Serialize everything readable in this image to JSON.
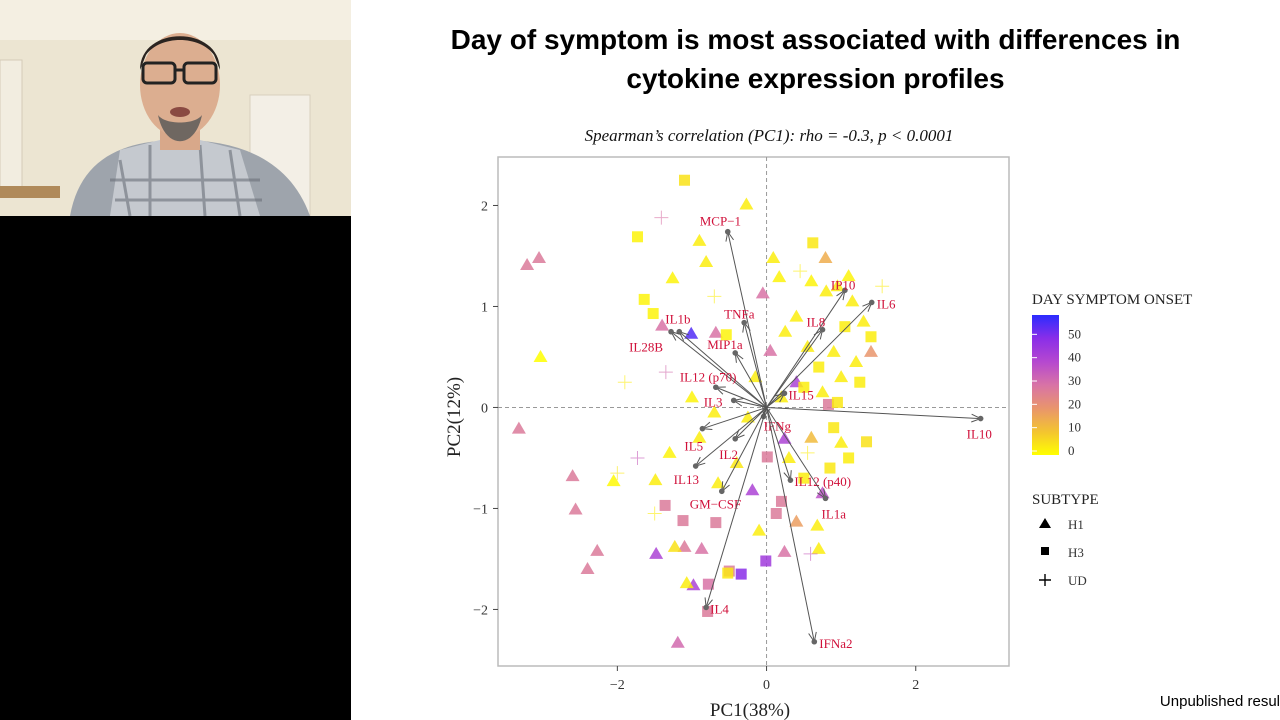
{
  "slide": {
    "title_line1": "Day of symptom is most associated with differences in",
    "title_line2": "cytokine expression profiles",
    "footer_note": "Unpublished resul"
  },
  "webcam": {
    "icon": "presenter-video-feed"
  },
  "chart_data": {
    "type": "scatter",
    "subtitle": "Spearman’s correlation (PC1): rho = -0.3, p < 0.0001",
    "xlabel": "PC1(38%)",
    "ylabel": "PC2(12%)",
    "xlim": [
      -3.6,
      3.25
    ],
    "ylim": [
      -2.56,
      2.48
    ],
    "xticks": [
      "-2",
      "0",
      "2"
    ],
    "xtick_values": [
      -2,
      0,
      2
    ],
    "yticks": [
      "-2",
      "-1",
      "0",
      "1",
      "2"
    ],
    "ytick_values": [
      -2,
      -1,
      0,
      1,
      2
    ],
    "reference_lines": {
      "x": 0,
      "y": 0,
      "style": "dashed"
    },
    "grid": false,
    "colorbar": {
      "title": "DAY SYMPTOM ONSET",
      "ticks": [
        "0",
        "10",
        "20",
        "30",
        "40",
        "50"
      ],
      "tick_values": [
        0,
        10,
        20,
        30,
        40,
        50
      ],
      "range": [
        0,
        60
      ],
      "colors": [
        "#ffff00",
        "#f3c430",
        "#e9956c",
        "#d873a6",
        "#b548d0",
        "#8a2ee8",
        "#2b2cff"
      ]
    },
    "shape_legend": {
      "title": "SUBTYPE",
      "entries": [
        {
          "label": "H1",
          "shape": "triangle"
        },
        {
          "label": "H3",
          "shape": "square"
        },
        {
          "label": "UD",
          "shape": "plus"
        }
      ]
    },
    "legend_position": "right",
    "loadings_color": "#d0103a",
    "loadings": [
      {
        "name": "MCP−1",
        "x": -0.52,
        "y": 1.74
      },
      {
        "name": "TNFa",
        "x": -0.3,
        "y": 0.84
      },
      {
        "name": "MIP1a",
        "x": -0.42,
        "y": 0.54
      },
      {
        "name": "IL1b",
        "x": -1.17,
        "y": 0.75
      },
      {
        "name": "IL28B",
        "x": -1.28,
        "y": 0.75
      },
      {
        "name": "IL12 (p70)",
        "x": -0.68,
        "y": 0.2
      },
      {
        "name": "IL3",
        "x": -0.44,
        "y": 0.07
      },
      {
        "name": "IL15",
        "x": 0.24,
        "y": 0.14
      },
      {
        "name": "IP10",
        "x": 1.05,
        "y": 1.16
      },
      {
        "name": "IL6",
        "x": 1.41,
        "y": 1.04
      },
      {
        "name": "IL8",
        "x": 0.75,
        "y": 0.77
      },
      {
        "name": "IL10",
        "x": 2.87,
        "y": -0.11
      },
      {
        "name": "IFNg",
        "x": -0.04,
        "y": -0.09
      },
      {
        "name": "IL5",
        "x": -0.86,
        "y": -0.21
      },
      {
        "name": "IL2",
        "x": -0.42,
        "y": -0.31
      },
      {
        "name": "IL13",
        "x": -0.95,
        "y": -0.58
      },
      {
        "name": "GM−CSF",
        "x": -0.6,
        "y": -0.83
      },
      {
        "name": "IL12 (p40)",
        "x": 0.32,
        "y": -0.72
      },
      {
        "name": "IL1a",
        "x": 0.79,
        "y": -0.9
      },
      {
        "name": "IL4",
        "x": -0.81,
        "y": -1.98
      },
      {
        "name": "IFNa2",
        "x": 0.64,
        "y": -2.32
      }
    ],
    "points_columns": [
      "pc1",
      "pc2",
      "day",
      "subtype"
    ],
    "points": [
      [
        -1.1,
        2.25,
        5,
        "H3"
      ],
      [
        -0.27,
        2.01,
        3,
        "H1"
      ],
      [
        -1.41,
        1.88,
        30,
        "UD"
      ],
      [
        -1.73,
        1.69,
        2,
        "H3"
      ],
      [
        -0.9,
        1.65,
        3,
        "H1"
      ],
      [
        -0.81,
        1.44,
        3,
        "H1"
      ],
      [
        -1.26,
        1.28,
        2,
        "H1"
      ],
      [
        0.09,
        1.48,
        3,
        "H1"
      ],
      [
        0.62,
        1.63,
        4,
        "H3"
      ],
      [
        0.79,
        1.48,
        15,
        "H1"
      ],
      [
        0.17,
        1.29,
        2,
        "H1"
      ],
      [
        -1.64,
        1.07,
        2,
        "H3"
      ],
      [
        -1.52,
        0.93,
        2,
        "H3"
      ],
      [
        -0.05,
        1.13,
        30,
        "H1"
      ],
      [
        -1.4,
        0.81,
        30,
        "H1"
      ],
      [
        -1.01,
        0.73,
        56,
        "H1"
      ],
      [
        -0.68,
        0.74,
        30,
        "H1"
      ],
      [
        -0.54,
        0.72,
        2,
        "H3"
      ],
      [
        0.05,
        0.56,
        30,
        "H1"
      ],
      [
        -3.05,
        1.48,
        28,
        "H1"
      ],
      [
        -3.21,
        1.41,
        28,
        "H1"
      ],
      [
        -3.03,
        0.5,
        0,
        "H1"
      ],
      [
        0.4,
        0.25,
        42,
        "H1"
      ],
      [
        0.83,
        0.03,
        28,
        "H3"
      ],
      [
        1.34,
        -0.34,
        5,
        "H3"
      ],
      [
        -3.32,
        -0.21,
        28,
        "H1"
      ],
      [
        -1.73,
        -0.5,
        35,
        "UD"
      ],
      [
        -2.6,
        -0.68,
        28,
        "H1"
      ],
      [
        -2.56,
        -1.01,
        28,
        "H1"
      ],
      [
        -2.05,
        -0.73,
        1,
        "H1"
      ],
      [
        -1.49,
        -0.72,
        3,
        "H1"
      ],
      [
        -1.36,
        -0.97,
        28,
        "H3"
      ],
      [
        -2.27,
        -1.42,
        28,
        "H1"
      ],
      [
        -2.4,
        -1.6,
        28,
        "H1"
      ],
      [
        -1.48,
        -1.45,
        42,
        "H1"
      ],
      [
        -1.1,
        -1.38,
        28,
        "H1"
      ],
      [
        -0.87,
        -1.4,
        30,
        "H1"
      ],
      [
        -1.23,
        -1.38,
        5,
        "H1"
      ],
      [
        -0.68,
        -1.14,
        28,
        "H3"
      ],
      [
        -1.12,
        -1.12,
        28,
        "H3"
      ],
      [
        -0.19,
        -0.82,
        42,
        "H1"
      ],
      [
        0.01,
        -0.49,
        28,
        "H3"
      ],
      [
        0.2,
        -0.93,
        28,
        "H3"
      ],
      [
        0.13,
        -1.05,
        28,
        "H3"
      ],
      [
        0.24,
        -0.31,
        42,
        "H1"
      ],
      [
        0.4,
        -1.13,
        18,
        "H1"
      ],
      [
        0.68,
        -1.17,
        3,
        "H1"
      ],
      [
        0.7,
        -1.4,
        3,
        "H1"
      ],
      [
        -0.01,
        -1.52,
        45,
        "H3"
      ],
      [
        0.24,
        -1.43,
        30,
        "H1"
      ],
      [
        -0.34,
        -1.65,
        50,
        "H3"
      ],
      [
        -0.78,
        -1.75,
        30,
        "H3"
      ],
      [
        -0.98,
        -1.76,
        42,
        "H1"
      ],
      [
        -0.5,
        -1.62,
        28,
        "H3"
      ],
      [
        -1.07,
        -1.74,
        3,
        "H1"
      ],
      [
        -0.52,
        -1.64,
        4,
        "H3"
      ],
      [
        -0.79,
        -2.02,
        28,
        "H3"
      ],
      [
        -1.19,
        -2.33,
        32,
        "H1"
      ],
      [
        0.59,
        -1.45,
        35,
        "UD"
      ],
      [
        -0.1,
        -1.22,
        3,
        "H1"
      ],
      [
        -1.3,
        -0.45,
        2,
        "H1"
      ],
      [
        -0.9,
        -0.3,
        3,
        "H1"
      ],
      [
        -0.4,
        -0.55,
        4,
        "H1"
      ],
      [
        -0.65,
        -0.75,
        3,
        "H1"
      ],
      [
        0.3,
        -0.5,
        3,
        "H1"
      ],
      [
        0.5,
        -0.7,
        3,
        "H3"
      ],
      [
        0.75,
        -0.85,
        38,
        "H1"
      ],
      [
        0.85,
        -0.6,
        4,
        "H3"
      ],
      [
        1.1,
        -0.5,
        3,
        "H3"
      ],
      [
        0.6,
        -0.3,
        12,
        "H1"
      ],
      [
        0.9,
        -0.2,
        4,
        "H3"
      ],
      [
        1.0,
        -0.35,
        3,
        "H1"
      ],
      [
        0.6,
        1.25,
        2,
        "H1"
      ],
      [
        0.8,
        1.15,
        3,
        "H1"
      ],
      [
        0.95,
        1.2,
        3,
        "H1"
      ],
      [
        1.1,
        1.3,
        2,
        "H1"
      ],
      [
        1.15,
        1.05,
        3,
        "H1"
      ],
      [
        1.3,
        0.85,
        3,
        "H1"
      ],
      [
        1.4,
        0.7,
        3,
        "H3"
      ],
      [
        1.4,
        0.55,
        20,
        "H1"
      ],
      [
        1.05,
        0.8,
        3,
        "H3"
      ],
      [
        0.9,
        0.55,
        3,
        "H1"
      ],
      [
        1.2,
        0.45,
        3,
        "H1"
      ],
      [
        1.0,
        0.3,
        3,
        "H1"
      ],
      [
        0.7,
        0.4,
        3,
        "H3"
      ],
      [
        0.55,
        0.6,
        3,
        "H1"
      ],
      [
        0.4,
        0.9,
        3,
        "H1"
      ],
      [
        0.25,
        0.75,
        3,
        "H1"
      ],
      [
        0.5,
        0.2,
        3,
        "H3"
      ],
      [
        0.75,
        0.15,
        3,
        "H1"
      ],
      [
        1.25,
        0.25,
        3,
        "H3"
      ],
      [
        0.95,
        0.05,
        4,
        "H3"
      ],
      [
        0.2,
        0.1,
        3,
        "H1"
      ],
      [
        -0.15,
        0.3,
        3,
        "H1"
      ],
      [
        -0.25,
        -0.1,
        3,
        "H1"
      ],
      [
        -0.7,
        -0.05,
        3,
        "H1"
      ],
      [
        -1.0,
        0.1,
        2,
        "H1"
      ],
      [
        -1.9,
        0.25,
        3,
        "UD"
      ],
      [
        -1.35,
        0.35,
        32,
        "UD"
      ],
      [
        -0.7,
        1.1,
        3,
        "UD"
      ],
      [
        1.55,
        1.2,
        3,
        "UD"
      ],
      [
        0.45,
        1.35,
        3,
        "UD"
      ],
      [
        -2.0,
        -0.65,
        4,
        "UD"
      ],
      [
        -1.5,
        -1.05,
        3,
        "UD"
      ],
      [
        0.55,
        -0.45,
        3,
        "UD"
      ]
    ]
  }
}
